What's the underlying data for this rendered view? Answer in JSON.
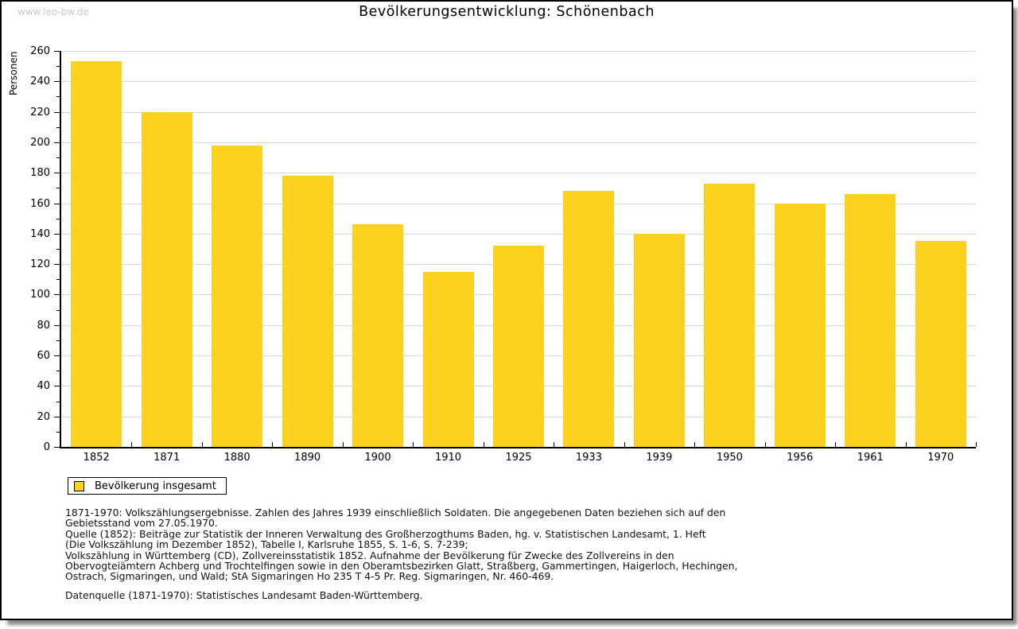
{
  "watermark": "www.leo-bw.de",
  "title": "Bevölkerungsentwicklung: Schönenbach",
  "chart_data": {
    "type": "bar",
    "title": "Bevölkerungsentwicklung: Schönenbach",
    "categories": [
      "1852",
      "1871",
      "1880",
      "1890",
      "1900",
      "1910",
      "1925",
      "1933",
      "1939",
      "1950",
      "1956",
      "1961",
      "1970"
    ],
    "values": [
      253,
      220,
      198,
      178,
      146,
      115,
      132,
      168,
      140,
      173,
      160,
      166,
      135
    ],
    "series_name": "Bevölkerung insgesamt",
    "xlabel": "",
    "ylabel": "Personen",
    "ylim": [
      0,
      260
    ],
    "ytick_step": 20,
    "yminor_step": 10,
    "grid": "horizontal-major",
    "bar_color": "#FCD21E",
    "grid_color": "#D9D9D9",
    "axis_color": "#000000",
    "legend": {
      "label": "Bevölkerung insgesamt",
      "position": "below-left"
    }
  },
  "footnotes": {
    "lines": [
      "1871-1970: Volkszählungsergebnisse. Zahlen des Jahres 1939 einschließlich Soldaten. Die angegebenen Daten beziehen sich auf den",
      "Gebietsstand vom 27.05.1970.",
      "Quelle (1852): Beiträge zur Statistik der Inneren Verwaltung des Großherzogthums Baden, hg. v. Statistischen Landesamt, 1. Heft",
      "(Die Volkszählung im Dezember 1852), Tabelle I, Karlsruhe 1855, S. 1-6, S. 7-239;",
      "Volkszählung in Württemberg (CD), Zollvereinsstatistik 1852. Aufnahme der Bevölkerung für Zwecke des Zollvereins in den",
      "Obervogteiämtern Achberg und Trochtelfingen sowie in den Oberamtsbezirken Glatt, Straßberg, Gammertingen, Haigerloch, Hechingen,",
      "Ostrach, Sigmaringen, und Wald; StA Sigmaringen Ho 235 T 4-5 Pr. Reg. Sigmaringen, Nr. 460-469."
    ],
    "datasource": "Datenquelle (1871-1970): Statistisches Landesamt Baden-Württemberg."
  }
}
